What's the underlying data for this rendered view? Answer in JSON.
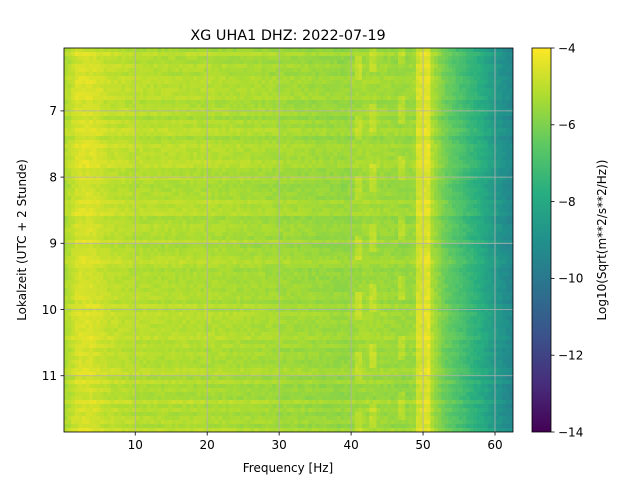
{
  "chart_data": {
    "type": "heatmap",
    "title": "XG UHA1  DHZ: 2022-07-19",
    "xlabel": "Frequency [Hz]",
    "ylabel": "Lokalzeit (UTC + 2 Stunde)",
    "xlim": [
      0.1,
      62.5
    ],
    "ylim": [
      11.85,
      6.05
    ],
    "x_ticks": [
      10,
      20,
      30,
      40,
      50,
      60
    ],
    "y_ticks": [
      7,
      8,
      9,
      10,
      11
    ],
    "grid": true,
    "colorbar": {
      "label": "Log10(Sqrt(m**2/s**2/Hz))",
      "range": [
        -14,
        -4
      ],
      "ticks": [
        -4,
        -6,
        -8,
        -10,
        -12,
        -14
      ],
      "colormap": "viridis"
    },
    "spectral_profile": {
      "frequency_hz": [
        0.5,
        2,
        4,
        6,
        10,
        20,
        30,
        39,
        42,
        48,
        51,
        53,
        56,
        58,
        60,
        62.5
      ],
      "level": [
        -5.2,
        -4.6,
        -4.6,
        -4.9,
        -5.1,
        -5.2,
        -5.4,
        -5.6,
        -5.4,
        -5.6,
        -5.1,
        -6.2,
        -7.2,
        -7.8,
        -8.6,
        -9.4
      ]
    },
    "features": [
      {
        "frequency_hz": 50,
        "label": "bright narrow band"
      },
      {
        "frequency_hz": 41,
        "label": "intermittent band"
      },
      {
        "frequency_hz": 43,
        "label": "intermittent band"
      },
      {
        "frequency_hz": 47,
        "label": "intermittent band"
      }
    ]
  }
}
